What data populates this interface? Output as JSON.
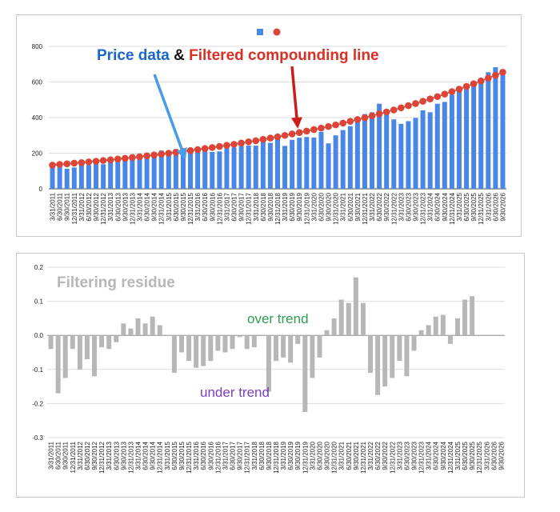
{
  "annotations": {
    "price_label": "Price data",
    "amp": "&",
    "filtered_label": "Filtered compounding line",
    "residue_title": "Filtering residue",
    "over_trend": "over trend",
    "under_trend": "under trend"
  },
  "colors": {
    "price_bar": "#4a86e8",
    "price_text": "#1a66cc",
    "filtered_line": "#db4437",
    "filtered_text": "#d93025",
    "arrow_blue": "#4a9be8",
    "arrow_red": "#cc1f1a",
    "residue_bar": "#b7b7b7",
    "residue_title": "#b7b7b7",
    "over_trend": "#2e9e4f",
    "under_trend": "#7a3fc4",
    "grid": "#dddddd"
  },
  "chart_data": [
    {
      "type": "bar",
      "combo": "bar+line",
      "x": [
        "3/31/2011",
        "6/30/2011",
        "9/30/2011",
        "12/31/2011",
        "3/31/2012",
        "6/30/2012",
        "9/30/2012",
        "12/31/2012",
        "3/31/2013",
        "6/30/2013",
        "9/30/2013",
        "12/31/2013",
        "3/31/2014",
        "6/30/2014",
        "9/30/2014",
        "12/31/2014",
        "3/31/2015",
        "6/30/2015",
        "9/30/2015",
        "12/31/2015",
        "3/31/2016",
        "6/30/2016",
        "9/30/2016",
        "12/31/2016",
        "3/31/2017",
        "6/30/2017",
        "9/30/2017",
        "12/31/2017",
        "3/31/2018",
        "6/30/2018",
        "9/30/2018",
        "12/31/2018",
        "3/31/2019",
        "6/30/2019",
        "9/30/2019",
        "12/31/2019",
        "3/31/2020",
        "6/30/2020",
        "9/30/2020",
        "12/31/2020",
        "3/31/2021",
        "6/30/2021",
        "9/30/2021",
        "12/31/2021",
        "3/31/2022",
        "6/30/2022",
        "9/30/2022",
        "12/31/2022",
        "3/31/2023",
        "6/30/2023",
        "9/30/2023",
        "12/31/2023",
        "3/31/2024",
        "6/30/2024",
        "9/30/2024",
        "12/31/2024",
        "3/31/2025",
        "6/30/2025",
        "9/30/2025",
        "12/31/2025",
        "3/31/2026",
        "6/30/2026",
        "9/30/2026"
      ],
      "series": [
        {
          "kind": "bar",
          "values": [
            129,
            131,
            113,
            120,
            137,
            133,
            149,
            138,
            158,
            162,
            168,
            182,
            182,
            191,
            202,
            215,
            212,
            223,
            194,
            212,
            208,
            213,
            207,
            210,
            228,
            232,
            240,
            243,
            242,
            271,
            258,
            285,
            241,
            275,
            287,
            291,
            288,
            320,
            255,
            300,
            330,
            352,
            375,
            420,
            430,
            478,
            445,
            390,
            365,
            380,
            398,
            441,
            430,
            478,
            488,
            528,
            553,
            582,
            575,
            615,
            655,
            683,
            640
          ],
          "note_unlabeled_series": true
        },
        {
          "kind": "line",
          "values": [
            133,
            137,
            140,
            144,
            147,
            151,
            155,
            159,
            163,
            167,
            171,
            176,
            180,
            185,
            190,
            195,
            200,
            205,
            210,
            215,
            220,
            226,
            232,
            238,
            244,
            250,
            257,
            264,
            270,
            278,
            285,
            292,
            300,
            308,
            316,
            324,
            333,
            341,
            350,
            359,
            369,
            379,
            389,
            399,
            410,
            421,
            432,
            443,
            455,
            467,
            479,
            492,
            505,
            518,
            532,
            546,
            560,
            575,
            590,
            606,
            622,
            638,
            655
          ]
        }
      ],
      "ylim": [
        0,
        800
      ],
      "yticks": [
        0,
        200,
        400,
        600,
        800
      ],
      "xtick_labels": [
        "3/31/2011",
        "6/30/2011",
        "9/30/2011",
        "12/31/2011",
        "3/31/2012",
        "6/30/2012",
        "9/30/2012",
        "12/31/2012",
        "3/31/2013",
        "6/30/2013",
        "9/30/2013",
        "12/31/2013",
        "3/31/2014",
        "6/30/2014",
        "9/30/2014",
        "12/31/2014",
        "3/31/2015",
        "6/30/2015",
        "9/30/2015",
        "12/31/2015",
        "3/31/2016",
        "6/30/2016",
        "9/30/2016",
        "12/31/2016",
        "3/31/2017",
        "6/30/2017",
        "9/30/2017",
        "12/31/2017",
        "3/31/2018",
        "6/30/2018",
        "9/30/2018",
        "12/31/2018",
        "3/31/2019",
        "6/30/2019",
        "9/30/2019",
        "12/31/2019",
        "3/31/2020",
        "6/30/2020",
        "9/30/2020",
        "12/31/2020",
        "3/31/2021",
        "6/30/2021",
        "9/30/2021",
        "12/31/2021",
        "3/31/2022",
        "6/30/2022",
        "9/30/2022",
        "12/31/2022",
        "3/31/2023",
        "6/30/2023",
        "9/30/2023",
        "12/31/2023",
        "3/31/2024",
        "6/30/2024",
        "9/30/2024",
        "12/31/2024",
        "3/31/2025",
        "6/30/2025",
        "9/30/2025",
        "12/31/2025",
        "3/31/2026",
        "6/30/2026",
        "9/30/2026"
      ],
      "legend": "top-center",
      "grid": true
    },
    {
      "type": "bar",
      "x": [
        "3/31/2011",
        "6/30/2011",
        "9/30/2011",
        "12/31/2011",
        "3/31/2012",
        "6/30/2012",
        "9/30/2012",
        "12/31/2012",
        "3/31/2013",
        "6/30/2013",
        "9/30/2013",
        "12/31/2013",
        "3/31/2014",
        "6/30/2014",
        "9/30/2014",
        "12/31/2014",
        "3/31/2015",
        "6/30/2015",
        "9/30/2015",
        "12/31/2015",
        "3/31/2016",
        "6/30/2016",
        "9/30/2016",
        "12/31/2016",
        "3/31/2017",
        "6/30/2017",
        "9/30/2017",
        "12/31/2017",
        "3/31/2018",
        "6/30/2018",
        "9/30/2018",
        "12/31/2018",
        "3/31/2019",
        "6/30/2019",
        "9/30/2019",
        "12/31/2019",
        "3/31/2020",
        "6/30/2020",
        "9/30/2020",
        "12/31/2020",
        "3/31/2021",
        "6/30/2021",
        "9/30/2021",
        "12/31/2021",
        "3/31/2022",
        "6/30/2022",
        "9/30/2022",
        "12/31/2022",
        "3/31/2023",
        "6/30/2023",
        "9/30/2023",
        "12/31/2023",
        "3/31/2024",
        "6/30/2024",
        "9/30/2024",
        "12/31/2024",
        "3/31/2025",
        "6/30/2025",
        "9/30/2025",
        "12/31/2025",
        "3/31/2026",
        "6/30/2026",
        "9/30/2026"
      ],
      "values": [
        -0.04,
        -0.17,
        -0.125,
        -0.04,
        -0.1,
        -0.07,
        -0.12,
        -0.035,
        -0.04,
        -0.02,
        0.035,
        0.02,
        0.05,
        0.035,
        0.055,
        0.03,
        0.0,
        -0.11,
        -0.05,
        -0.075,
        -0.095,
        -0.09,
        -0.075,
        -0.045,
        -0.05,
        -0.04,
        -0.005,
        -0.04,
        -0.035,
        0.0,
        -0.165,
        -0.075,
        -0.065,
        -0.08,
        -0.025,
        -0.225,
        -0.125,
        -0.065,
        0.015,
        0.05,
        0.105,
        0.095,
        0.17,
        0.095,
        -0.11,
        -0.175,
        -0.15,
        -0.125,
        -0.075,
        -0.12,
        -0.045,
        0.015,
        0.03,
        0.055,
        0.06,
        -0.025,
        0.05,
        0.105,
        0.115,
        0.0,
        0.0,
        0.0,
        0.0
      ],
      "ylim": [
        -0.3,
        0.2
      ],
      "yticks": [
        -0.3,
        -0.2,
        -0.1,
        0.0,
        0.1,
        0.2
      ],
      "ytick_labels": [
        "-0.3",
        "-0.2",
        "-0.1",
        "0.0",
        "0.1",
        "0.2"
      ],
      "xtick_labels": [
        "3/31/2011",
        "6/30/2011",
        "9/30/2011",
        "12/31/2011",
        "3/31/2012",
        "6/30/2012",
        "9/30/2012",
        "12/31/2012",
        "3/31/2013",
        "6/30/2013",
        "9/30/2013",
        "12/31/2013",
        "3/31/2014",
        "6/30/2014",
        "9/30/2014",
        "12/31/2014",
        "3/31/2015",
        "6/30/2015",
        "9/30/2015",
        "12/31/2015",
        "3/31/2016",
        "6/30/2016",
        "9/30/2016",
        "12/31/2016",
        "3/31/2017",
        "6/30/2017",
        "9/30/2017",
        "12/31/2017",
        "3/31/2018",
        "6/30/2018",
        "9/30/2018",
        "12/31/2018",
        "3/31/2019",
        "6/30/2019",
        "9/30/2019",
        "12/31/2019",
        "3/31/2020",
        "6/30/2020",
        "9/30/2020",
        "12/31/2020",
        "3/31/2021",
        "6/30/2021",
        "9/30/2021",
        "12/31/2021",
        "3/31/2022",
        "6/30/2022",
        "9/30/2022",
        "12/31/2022",
        "3/31/2023",
        "6/30/2023",
        "9/30/2023",
        "12/31/2023",
        "3/31/2024",
        "6/30/2024",
        "9/30/2024",
        "12/31/2024",
        "3/31/2025",
        "6/30/2025",
        "9/30/2025",
        "12/31/2025",
        "3/31/2026",
        "6/30/2026",
        "9/30/2026"
      ],
      "grid": true
    }
  ]
}
